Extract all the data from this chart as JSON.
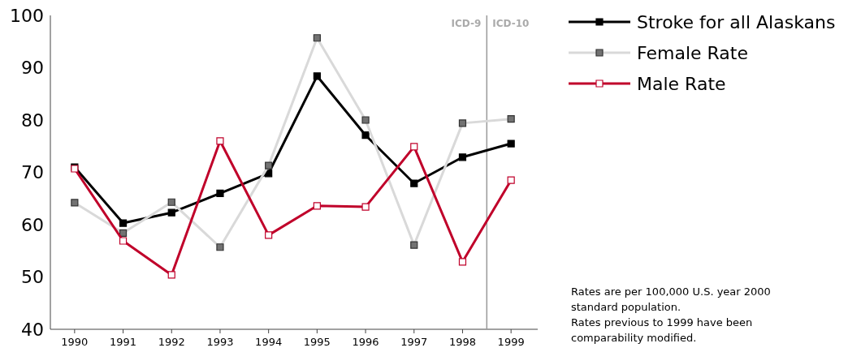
{
  "chart_data": {
    "type": "line",
    "x": [
      1990,
      1991,
      1992,
      1993,
      1994,
      1995,
      1996,
      1997,
      1998,
      1999
    ],
    "xlim": [
      1989.5,
      1999.55
    ],
    "xticks": [
      1990,
      1991,
      1992,
      1993,
      1994,
      1995,
      1996,
      1997,
      1998,
      1999
    ],
    "ylim": [
      40,
      100
    ],
    "yticks": [
      40,
      50,
      60,
      70,
      80,
      90,
      100
    ],
    "series": [
      {
        "name": "Stroke for all Alaskans",
        "color": "#000000",
        "values": [
          71.0,
          60.3,
          62.3,
          66.0,
          69.8,
          88.4,
          77.1,
          67.9,
          72.9,
          75.5
        ]
      },
      {
        "name": "Female Rate",
        "color": "#d9d9d9",
        "values": [
          64.2,
          58.4,
          64.3,
          55.7,
          71.3,
          95.7,
          80.0,
          56.1,
          79.4,
          80.2
        ]
      },
      {
        "name": "Male Rate",
        "color": "#c0002a",
        "values": [
          70.7,
          56.9,
          50.4,
          76.0,
          58.0,
          63.6,
          63.4,
          74.9,
          52.9,
          68.5
        ]
      }
    ],
    "ref_lines": [
      {
        "axis": "x",
        "value": 1998.5,
        "color": "#999999"
      }
    ],
    "annotations": [
      "ICD-9",
      "ICD-10",
      "Rates are per 100,000 U.S. year 2000 standard population.",
      "Rates previous to 1999 have been comparability modified."
    ],
    "marker": "square",
    "grid": false,
    "legend": "top right"
  }
}
